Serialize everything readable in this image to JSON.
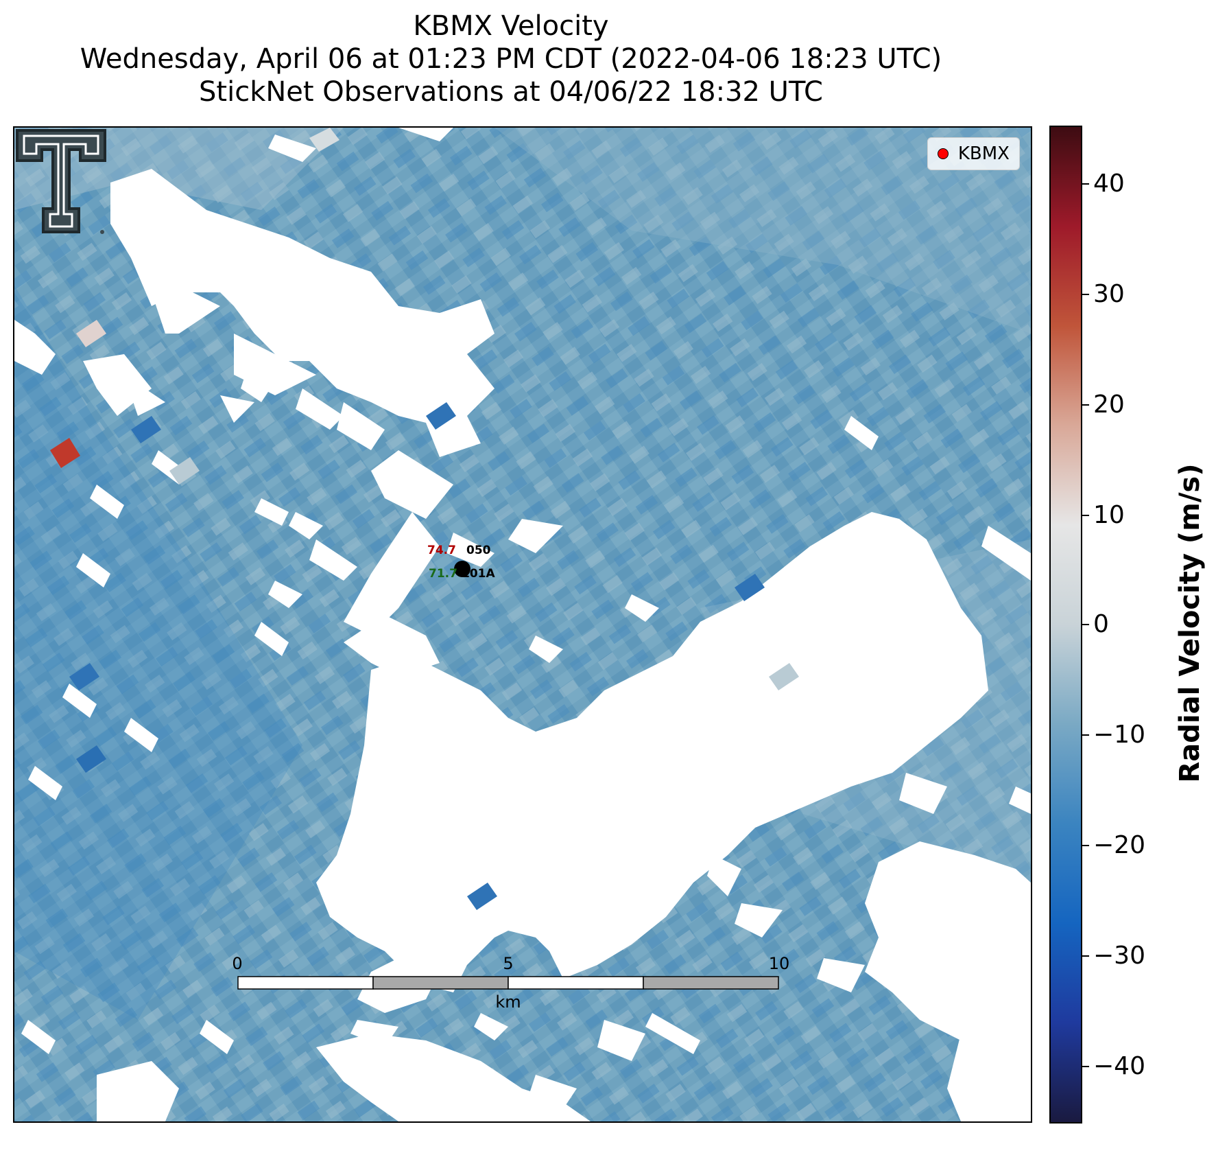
{
  "title": {
    "line1": "KBMX Velocity",
    "line2": "Wednesday, April 06 at 01:23 PM CDT (2022-04-06 18:23 UTC)",
    "line3": "StickNet Observations at 04/06/22 18:32 UTC"
  },
  "legend": {
    "label": "KBMX",
    "marker_color": "#ff0000"
  },
  "colorbar": {
    "label": "Radial Velocity (m/s)",
    "range": [
      -45,
      45
    ],
    "ticks": [
      "40",
      "30",
      "20",
      "10",
      "0",
      "−10",
      "−20",
      "−30",
      "−40"
    ],
    "colors": [
      "#1a1a40",
      "#1f3a9e",
      "#1565c0",
      "#3b84c0",
      "#7aa9c4",
      "#c9d3d8",
      "#e6e6e6",
      "#d9a898",
      "#c0553a",
      "#9e1a2a",
      "#3d0c12"
    ]
  },
  "stations": [
    {
      "id": "050",
      "value": "74.7",
      "value_color": "#b00000"
    },
    {
      "id": "101A",
      "value": "71.7",
      "value_color": "#1a6a1a"
    }
  ],
  "scalebar": {
    "ticks": [
      "0",
      "5",
      "10"
    ],
    "unit": "km"
  },
  "palette": {
    "field_base": "#6fa3bf",
    "dark_blue": "#3d84bc",
    "light": "#a9c4d1",
    "red": "#c0392b",
    "no_data": "#ffffff"
  }
}
